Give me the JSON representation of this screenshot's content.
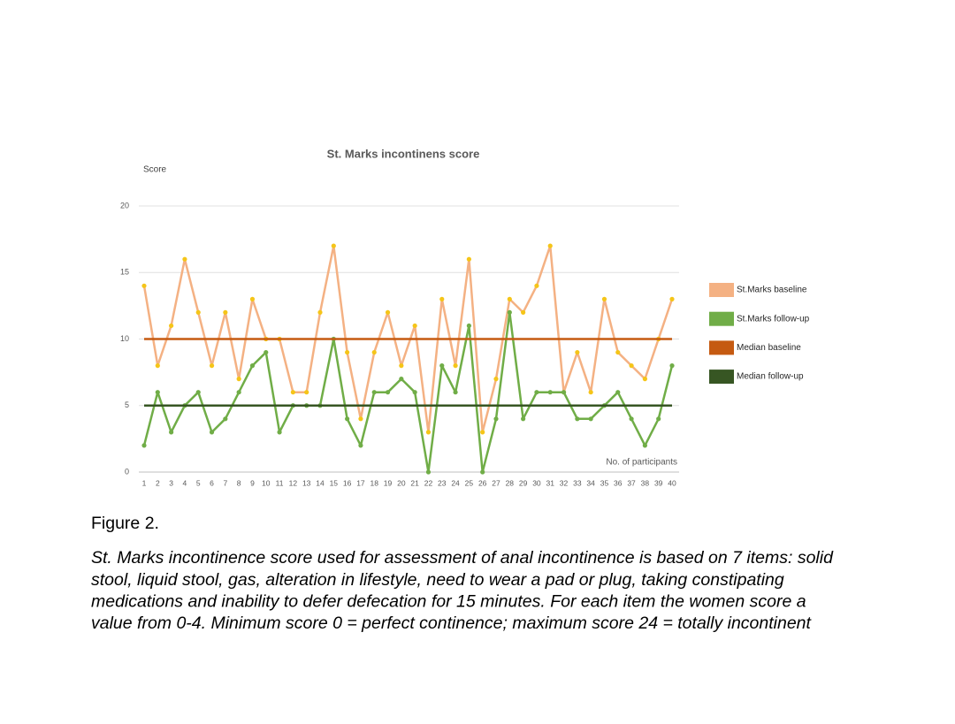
{
  "chart_data": {
    "type": "line",
    "title": "St. Marks incontinens score",
    "y_label": "Score",
    "x_label": "No. of participants",
    "x": [
      1,
      2,
      3,
      4,
      5,
      6,
      7,
      8,
      9,
      10,
      11,
      12,
      13,
      14,
      15,
      16,
      17,
      18,
      19,
      20,
      21,
      22,
      23,
      24,
      25,
      26,
      27,
      28,
      29,
      30,
      31,
      32,
      33,
      34,
      35,
      36,
      37,
      38,
      39,
      40
    ],
    "xlim": [
      1,
      40
    ],
    "ylim": [
      0,
      20
    ],
    "yticks": [
      0,
      5,
      10,
      15,
      20
    ],
    "grid": true,
    "legend": "right",
    "series": [
      {
        "name": "St.Marks baseline",
        "color": "#f4b183",
        "marker_color": "#f5c518",
        "values": [
          14,
          8,
          11,
          16,
          12,
          8,
          12,
          7,
          13,
          10,
          10,
          6,
          6,
          12,
          17,
          9,
          4,
          9,
          12,
          8,
          11,
          3,
          13,
          8,
          16,
          3,
          7,
          13,
          12,
          14,
          17,
          6,
          9,
          6,
          13,
          9,
          8,
          7,
          10,
          13
        ]
      },
      {
        "name": "St.Marks follow-up",
        "color": "#70ad47",
        "marker_color": "#70ad47",
        "values": [
          2,
          6,
          3,
          5,
          6,
          3,
          4,
          6,
          8,
          9,
          3,
          5,
          5,
          5,
          10,
          4,
          2,
          6,
          6,
          7,
          6,
          0,
          8,
          6,
          11,
          0,
          4,
          12,
          4,
          6,
          6,
          6,
          4,
          4,
          5,
          6,
          4,
          2,
          4,
          8
        ]
      },
      {
        "name": "Median baseline",
        "color": "#c55a11",
        "type": "hline",
        "value": 10
      },
      {
        "name": "Median follow-up",
        "color": "#375623",
        "type": "hline",
        "value": 5
      }
    ]
  },
  "figure": {
    "label": "Figure 2.",
    "caption_lines": [
      "St. Marks incontinence score used for assessment of anal incontinence is based on 7 items: solid",
      "stool, liquid stool, gas, alteration in lifestyle, need to wear a pad or plug, taking constipating",
      "medications and inability to defer defecation for 15 minutes. For each item the women score a",
      "value from 0-4. Minimum score 0 = perfect continence; maximum score 24 = totally incontinent"
    ]
  }
}
